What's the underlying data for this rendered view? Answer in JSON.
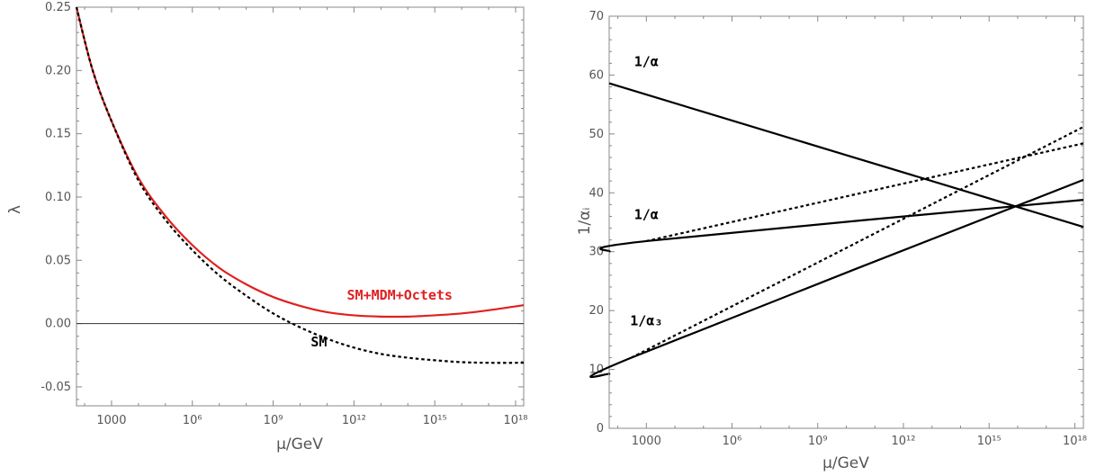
{
  "chart_data": [
    {
      "type": "line",
      "xlabel": "μ/GeV",
      "ylabel": "λ",
      "x_scale": "log10",
      "xlim": [
        50,
        2e+18
      ],
      "ylim": [
        -0.065,
        0.25
      ],
      "x_ticks": [
        {
          "value": 1000,
          "label": "1000"
        },
        {
          "value": 1000000.0,
          "label": "10⁶"
        },
        {
          "value": 1000000000.0,
          "label": "10⁹"
        },
        {
          "value": 1000000000000.0,
          "label": "10¹²"
        },
        {
          "value": 1000000000000000.0,
          "label": "10¹⁵"
        },
        {
          "value": 1e+18,
          "label": "10¹⁸"
        }
      ],
      "y_ticks": [
        {
          "value": -0.05,
          "label": "-0.05"
        },
        {
          "value": 0.0,
          "label": "0.00"
        },
        {
          "value": 0.05,
          "label": "0.05"
        },
        {
          "value": 0.1,
          "label": "0.10"
        },
        {
          "value": 0.15,
          "label": "0.15"
        },
        {
          "value": 0.2,
          "label": "0.20"
        },
        {
          "value": 0.25,
          "label": "0.25"
        }
      ],
      "grid": false,
      "hline": 0,
      "series": [
        {
          "name": "SM+MDM+Octets",
          "color": "#e02020",
          "dash": false,
          "x": [
            50,
            200,
            1000,
            10000.0,
            100000.0,
            1000000.0,
            10000000.0,
            100000000.0,
            1000000000.0,
            10000000000.0,
            100000000000.0,
            1000000000000.0,
            10000000000000.0,
            100000000000000.0,
            1000000000000000.0,
            1e+16,
            1e+17,
            2e+18
          ],
          "y": [
            0.25,
            0.2,
            0.16,
            0.115,
            0.085,
            0.062,
            0.044,
            0.031,
            0.021,
            0.014,
            0.009,
            0.0065,
            0.0055,
            0.0055,
            0.0065,
            0.008,
            0.0105,
            0.0145
          ]
        },
        {
          "name": "SM",
          "color": "#000000",
          "dash": true,
          "x": [
            50,
            200,
            1000,
            10000.0,
            100000.0,
            1000000.0,
            10000000.0,
            100000000.0,
            1000000000.0,
            10000000000.0,
            100000000000.0,
            1000000000000.0,
            10000000000000.0,
            100000000000000.0,
            1000000000000000.0,
            1e+16,
            1e+17,
            2e+18
          ],
          "y": [
            0.25,
            0.2,
            0.16,
            0.113,
            0.082,
            0.058,
            0.038,
            0.022,
            0.008,
            -0.003,
            -0.012,
            -0.019,
            -0.024,
            -0.027,
            -0.029,
            -0.0305,
            -0.031,
            -0.031
          ]
        }
      ],
      "annotations": [
        {
          "text": "SM+MDM+Octets",
          "x": 50000000000000.0,
          "y": 0.019,
          "color": "#e02020"
        },
        {
          "text": "SM",
          "x": 50000000000.0,
          "y": -0.018,
          "color": "#000000"
        }
      ]
    },
    {
      "type": "line",
      "xlabel": "μ/GeV",
      "ylabel": "1/αᵢ",
      "x_scale": "log10",
      "xlim": [
        50,
        2e+18
      ],
      "ylim": [
        0,
        70
      ],
      "x_ticks": [
        {
          "value": 1000,
          "label": "1000"
        },
        {
          "value": 1000000.0,
          "label": "10⁶"
        },
        {
          "value": 1000000000.0,
          "label": "10⁹"
        },
        {
          "value": 1000000000000.0,
          "label": "10¹²"
        },
        {
          "value": 1000000000000000.0,
          "label": "10¹⁵"
        },
        {
          "value": 1e+18,
          "label": "10¹⁸"
        }
      ],
      "y_ticks": [
        {
          "value": 0,
          "label": "0"
        },
        {
          "value": 10,
          "label": "10"
        },
        {
          "value": 20,
          "label": "20"
        },
        {
          "value": 30,
          "label": "30"
        },
        {
          "value": 40,
          "label": "40"
        },
        {
          "value": 50,
          "label": "50"
        },
        {
          "value": 60,
          "label": "60"
        },
        {
          "value": 70,
          "label": "70"
        }
      ],
      "grid": false,
      "series": [
        {
          "color": "#000000",
          "dash": false,
          "x": [
            50,
            2e+18
          ],
          "y": [
            58.6,
            34.2
          ]
        },
        {
          "color": "#000000",
          "dash": false,
          "x": [
            50,
            1000,
            2e+18
          ],
          "y": [
            30.0,
            31.8,
            38.8
          ]
        },
        {
          "color": "#000000",
          "dash": true,
          "x": [
            1000,
            2e+18
          ],
          "y": [
            31.8,
            48.4
          ]
        },
        {
          "color": "#000000",
          "dash": false,
          "x": [
            50,
            300,
            2e+18
          ],
          "y": [
            9.2,
            12.0,
            42.2
          ]
        },
        {
          "color": "#000000",
          "dash": true,
          "x": [
            300,
            2e+18
          ],
          "y": [
            12.0,
            51.2
          ]
        }
      ],
      "annotations": [
        {
          "text": "1/α",
          "x": 1000,
          "y": 61.5,
          "color": "#000000"
        },
        {
          "text": "1/α",
          "x": 1000,
          "y": 35.5,
          "color": "#000000"
        },
        {
          "text": "1/α₃",
          "x": 1000,
          "y": 17.5,
          "color": "#000000"
        }
      ]
    }
  ]
}
